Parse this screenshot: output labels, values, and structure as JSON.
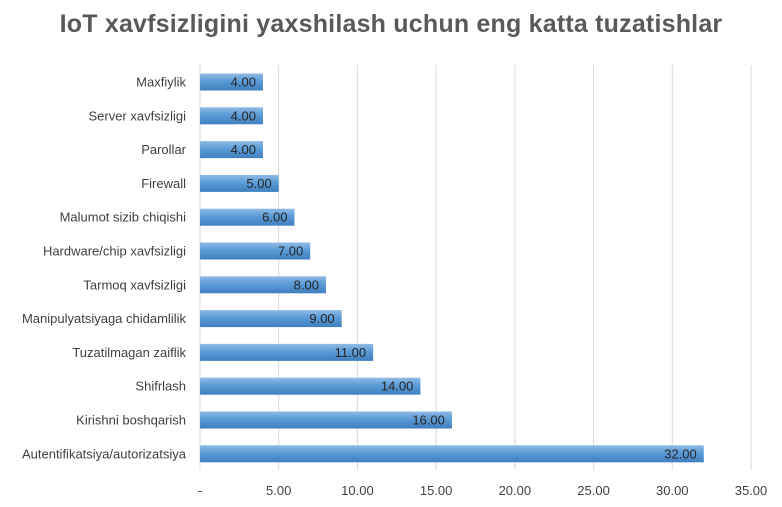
{
  "chart_data": {
    "type": "bar",
    "orientation": "horizontal",
    "title": "IoT xavfsizligini yaxshilash uchun eng katta tuzatishlar",
    "xlabel": "",
    "ylabel": "",
    "categories": [
      "Maxfiylik",
      "Server xavfsizligi",
      "Parollar",
      "Firewall",
      "Malumot sizib chiqishi",
      "Hardware/chip xavfsizligi",
      "Tarmoq xavfsizligi",
      "Manipulyatsiyaga chidamlilik",
      "Tuzatilmagan zaiflik",
      "Shifrlash",
      "Kirishni boshqarish",
      "Autentifikatsiya/autorizatsiya"
    ],
    "values": [
      4,
      4,
      4,
      5,
      6,
      7,
      8,
      9,
      11,
      14,
      16,
      32
    ],
    "data_labels": [
      "4.00",
      "4.00",
      "4.00",
      "5.00",
      "6.00",
      "7.00",
      "8.00",
      "9.00",
      "11.00",
      "14.00",
      "16.00",
      "32.00"
    ],
    "xlim": [
      0,
      35
    ],
    "x_ticks": [
      0,
      5,
      10,
      15,
      20,
      25,
      30,
      35
    ],
    "x_tick_labels": [
      "-",
      "5.00",
      "10.00",
      "15.00",
      "20.00",
      "25.00",
      "30.00",
      "35.00"
    ],
    "grid": true,
    "legend": "none",
    "bar_color": "#5b9bd5",
    "bar_color_light": "#8fbbe6",
    "bar_color_dark": "#3f7fc0",
    "grid_color": "#d9d9d9"
  }
}
